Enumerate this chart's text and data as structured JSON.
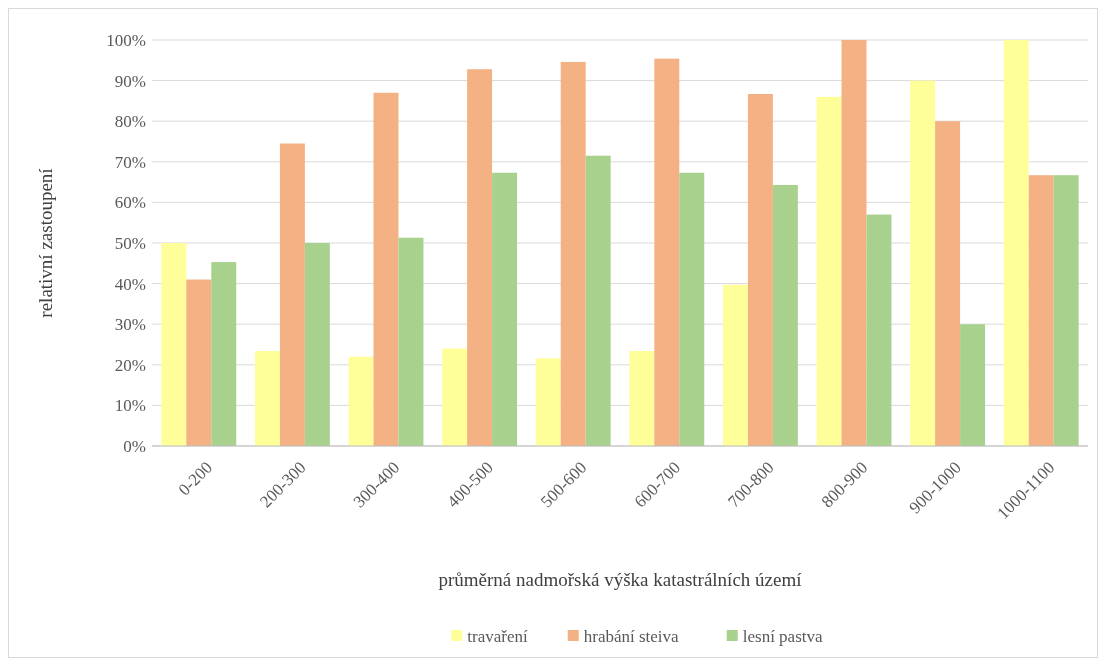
{
  "chart_data": {
    "type": "bar",
    "xlabel": "průměrná nadmořská výška katastrálních území",
    "ylabel": "relativní zastoupení",
    "categories": [
      "0-200",
      "200-300",
      "300-400",
      "400-500",
      "500-600",
      "600-700",
      "700-800",
      "800-900",
      "900-1000",
      "1000-1100"
    ],
    "series": [
      {
        "name": "travaření",
        "color": "#ffff99",
        "values": [
          50,
          23.4,
          22,
          24,
          21.6,
          23.4,
          39.7,
          86,
          90,
          100
        ]
      },
      {
        "name": "hrabání steiva",
        "color": "#f4b183",
        "values": [
          41,
          74.5,
          87,
          92.8,
          94.6,
          95.4,
          86.7,
          100,
          80,
          66.7
        ]
      },
      {
        "name": "lesní pastva",
        "color": "#a9d18e",
        "values": [
          45.3,
          50,
          51.3,
          67.3,
          71.5,
          67.3,
          64.3,
          57,
          30,
          66.7
        ]
      }
    ],
    "ylim": [
      0,
      100
    ],
    "yticks": [
      {
        "value": 0,
        "label": "0%"
      },
      {
        "value": 10,
        "label": "10%"
      },
      {
        "value": 20,
        "label": "20%"
      },
      {
        "value": 30,
        "label": "30%"
      },
      {
        "value": 40,
        "label": "40%"
      },
      {
        "value": 50,
        "label": "50%"
      },
      {
        "value": 60,
        "label": "60%"
      },
      {
        "value": 70,
        "label": "70%"
      },
      {
        "value": 80,
        "label": "80%"
      },
      {
        "value": 90,
        "label": "90%"
      },
      {
        "value": 100,
        "label": "100%"
      }
    ],
    "grid": "y",
    "legend": "bottom"
  }
}
